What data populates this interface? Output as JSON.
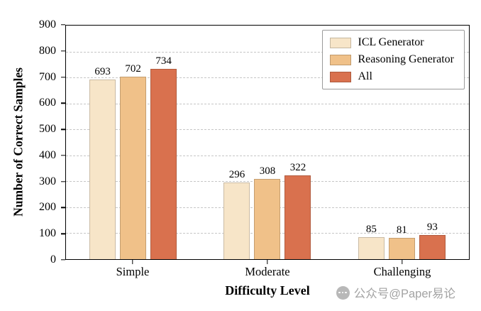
{
  "chart_data": {
    "type": "bar",
    "title": "",
    "categories": [
      "Simple",
      "Moderate",
      "Challenging"
    ],
    "series": [
      {
        "name": "ICL Generator",
        "color": "#F7E5C8",
        "values": [
          693,
          296,
          85
        ]
      },
      {
        "name": "Reasoning Generator",
        "color": "#F0C189",
        "values": [
          702,
          308,
          81
        ]
      },
      {
        "name": "All",
        "color": "#D9714E",
        "values": [
          734,
          322,
          93
        ]
      }
    ],
    "xlabel": "Difficulty Level",
    "ylabel": "Number of Correct Samples",
    "ylim": [
      0,
      900
    ],
    "yticks": [
      0,
      100,
      200,
      300,
      400,
      500,
      600,
      700,
      800,
      900
    ],
    "grid": "dashed-horizontal",
    "legend_position": "top-right"
  },
  "watermark": {
    "text": "公众号@Paper易论"
  }
}
